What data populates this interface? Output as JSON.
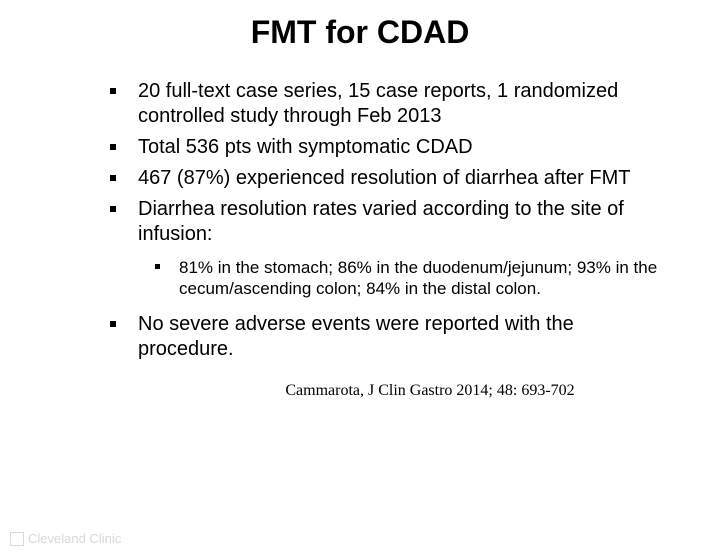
{
  "title": "FMT for CDAD",
  "bullets": [
    "20 full-text case series, 15 case reports, 1 randomized controlled study through Feb 2013",
    "Total 536 pts with symptomatic CDAD",
    "467 (87%) experienced resolution of diarrhea after FMT",
    "Diarrhea resolution rates varied according to the site of infusion:"
  ],
  "subbullets": [
    "81% in the stomach; 86% in the duodenum/jejunum; 93% in the cecum/ascending colon; 84% in the distal colon."
  ],
  "bullet_after": "No severe adverse events were reported with the procedure.",
  "citation": "Cammarota, J Clin Gastro 2014; 48: 693-702",
  "logo_text": "Cleveland Clinic",
  "colors": {
    "background": "#ffffff",
    "text": "#000000",
    "logo": "#d9d9d9"
  },
  "fonts": {
    "title_size": 32,
    "body_size": 20,
    "sub_size": 17,
    "citation_size": 16,
    "title_family": "Arial",
    "citation_family": "Times New Roman"
  }
}
